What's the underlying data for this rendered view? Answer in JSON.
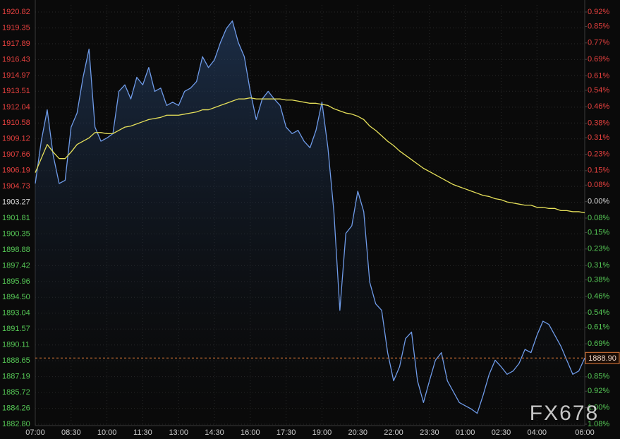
{
  "chart_data": {
    "type": "line",
    "categories": [
      "07:00",
      null,
      null,
      null,
      null,
      null,
      "08:30",
      null,
      null,
      null,
      null,
      null,
      "10:00",
      null,
      null,
      null,
      null,
      null,
      "11:30",
      null,
      null,
      null,
      null,
      null,
      "13:00",
      null,
      null,
      null,
      null,
      null,
      "14:30",
      null,
      null,
      null,
      null,
      null,
      "16:00",
      null,
      null,
      null,
      null,
      null,
      "17:30",
      null,
      null,
      null,
      null,
      null,
      "19:00",
      null,
      null,
      null,
      null,
      null,
      "20:30",
      null,
      null,
      null,
      null,
      null,
      "22:00",
      null,
      null,
      null,
      null,
      null,
      "23:30",
      null,
      null,
      null,
      null,
      null,
      "01:00",
      null,
      null,
      null,
      null,
      null,
      "02:30",
      null,
      null,
      null,
      null,
      null,
      "04:00",
      null,
      null,
      null,
      null,
      null,
      null,
      null,
      "06:00"
    ],
    "series": [
      {
        "color": "#6f9be8",
        "area": true,
        "values": [
          1905.0,
          1908.9,
          1911.8,
          1907.6,
          1905.0,
          1905.3,
          1910.2,
          1911.5,
          1914.8,
          1917.4,
          1910.2,
          1908.9,
          1909.2,
          1909.6,
          1913.5,
          1914.1,
          1912.8,
          1914.8,
          1914.1,
          1915.7,
          1913.5,
          1913.8,
          1912.2,
          1912.5,
          1912.2,
          1913.5,
          1913.8,
          1914.4,
          1916.7,
          1915.7,
          1916.4,
          1918.0,
          1919.3,
          1920.0,
          1918.0,
          1916.7,
          1913.5,
          1910.9,
          1912.8,
          1913.5,
          1912.8,
          1912.2,
          1910.2,
          1909.6,
          1909.9,
          1908.9,
          1908.3,
          1909.9,
          1912.5,
          1908.3,
          1902.4,
          1893.3,
          1900.4,
          1901.1,
          1904.3,
          1902.4,
          1895.9,
          1893.9,
          1893.3,
          1889.4,
          1886.8,
          1888.1,
          1890.7,
          1891.3,
          1886.8,
          1884.8,
          1886.8,
          1888.7,
          1889.4,
          1886.8,
          1885.8,
          1884.8,
          1884.5,
          1884.2,
          1883.8,
          1885.5,
          1887.4,
          1888.7,
          1888.1,
          1887.4,
          1887.7,
          1888.4,
          1889.7,
          1889.4,
          1891.0,
          1892.3,
          1892.0,
          1891.0,
          1890.0,
          1888.7,
          1887.4,
          1887.7,
          1888.9
        ]
      },
      {
        "color": "#e6e05a",
        "area": false,
        "values": [
          1906.0,
          1907.3,
          1908.6,
          1907.9,
          1907.3,
          1907.3,
          1907.9,
          1908.6,
          1908.9,
          1909.2,
          1909.7,
          1909.7,
          1909.6,
          1909.6,
          1909.9,
          1910.2,
          1910.3,
          1910.5,
          1910.7,
          1910.9,
          1911.0,
          1911.1,
          1911.3,
          1911.3,
          1911.3,
          1911.4,
          1911.5,
          1911.6,
          1911.8,
          1911.8,
          1912.0,
          1912.2,
          1912.4,
          1912.6,
          1912.8,
          1912.8,
          1912.9,
          1912.8,
          1912.8,
          1912.8,
          1912.8,
          1912.8,
          1912.7,
          1912.7,
          1912.6,
          1912.5,
          1912.4,
          1912.4,
          1912.3,
          1912.2,
          1911.9,
          1911.7,
          1911.5,
          1911.4,
          1911.2,
          1910.9,
          1910.3,
          1909.9,
          1909.4,
          1908.9,
          1908.5,
          1908.0,
          1907.6,
          1907.2,
          1906.8,
          1906.4,
          1906.1,
          1905.8,
          1905.5,
          1905.2,
          1904.9,
          1904.7,
          1904.5,
          1904.3,
          1904.1,
          1903.9,
          1903.8,
          1903.6,
          1903.5,
          1903.3,
          1903.2,
          1903.1,
          1903.0,
          1903.0,
          1902.8,
          1902.8,
          1902.7,
          1902.7,
          1902.5,
          1902.5,
          1902.4,
          1902.4,
          1902.3
        ]
      }
    ],
    "ylim": [
      1882.8,
      1920.82
    ],
    "yticks": [
      1920.82,
      1919.35,
      1917.89,
      1916.43,
      1914.97,
      1913.51,
      1912.04,
      1910.58,
      1909.12,
      1907.66,
      1906.19,
      1904.73,
      1903.27,
      1901.81,
      1900.35,
      1898.88,
      1897.42,
      1895.96,
      {
        "value": 1894.5,
        "label": "1894.50"
      },
      1893.04,
      1891.57,
      1890.11,
      1888.65,
      1887.19,
      1885.72,
      1884.26,
      {
        "value": 1882.8,
        "label": "1882.80"
      }
    ],
    "y2lim": [
      -1.08,
      0.92
    ],
    "y2ticks": [
      {
        "value": 0.92,
        "label": "0.92%"
      },
      {
        "value": 0.85,
        "label": "0.85%"
      },
      {
        "value": 0.77,
        "label": "0.77%"
      },
      {
        "value": 0.69,
        "label": "0.69%"
      },
      {
        "value": 0.61,
        "label": "0.61%"
      },
      {
        "value": 0.54,
        "label": "0.54%"
      },
      {
        "value": 0.46,
        "label": "0.46%"
      },
      {
        "value": 0.38,
        "label": "0.38%"
      },
      {
        "value": 0.31,
        "label": "0.31%"
      },
      {
        "value": 0.23,
        "label": "0.23%"
      },
      {
        "value": 0.15,
        "label": "0.15%"
      },
      {
        "value": 0.08,
        "label": "0.08%"
      },
      {
        "value": 0,
        "label": "0.00%"
      },
      {
        "value": -0.08,
        "label": "0.08%"
      },
      {
        "value": -0.15,
        "label": "0.15%"
      },
      {
        "value": -0.23,
        "label": "0.23%"
      },
      {
        "value": -0.31,
        "label": "0.31%"
      },
      {
        "value": -0.38,
        "label": "0.38%"
      },
      {
        "value": -0.46,
        "label": "0.46%"
      },
      {
        "value": -0.54,
        "label": "0.54%"
      },
      {
        "value": -0.61,
        "label": "0.61%"
      },
      {
        "value": -0.69,
        "label": "0.69%"
      },
      {
        "value": -0.77,
        "label": "0.77%"
      },
      {
        "value": -0.85,
        "label": "0.85%"
      },
      {
        "value": -0.92,
        "label": "0.92%"
      },
      {
        "value": -1.0,
        "label": "1.00%"
      },
      {
        "value": -1.08,
        "label": "1.08%"
      }
    ],
    "up_color": "#e8413f",
    "down_color": "#56c956",
    "flat_color": "#d8d8d8",
    "grid": true,
    "last_price": {
      "value": 1888.9,
      "label": "1888.90",
      "color": "#e07a3a"
    },
    "watermark": "FX678"
  }
}
